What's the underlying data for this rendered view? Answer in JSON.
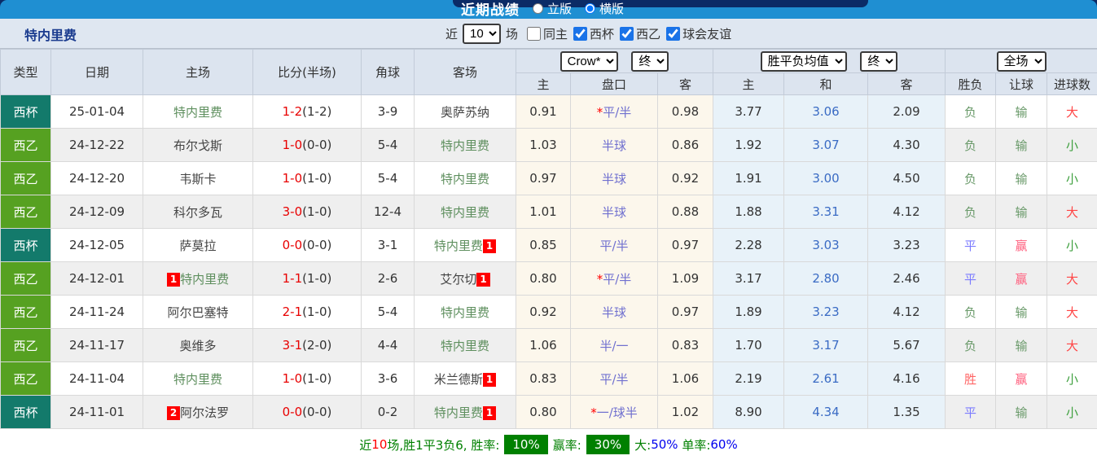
{
  "topbar": {
    "title": "近期战绩",
    "layout_options": [
      {
        "label": "立版",
        "selected": false
      },
      {
        "label": "横版",
        "selected": true
      }
    ]
  },
  "controls": {
    "team_name": "特内里费",
    "recent_label": "近",
    "recent_value": "10",
    "matches_label": "场",
    "checkboxes": [
      {
        "label": "同主",
        "checked": false
      },
      {
        "label": "西杯",
        "checked": true
      },
      {
        "label": "西乙",
        "checked": true
      },
      {
        "label": "球会友谊",
        "checked": true
      }
    ]
  },
  "table": {
    "headers": [
      "类型",
      "日期",
      "主场",
      "比分(半场)",
      "角球",
      "客场"
    ],
    "sub_headers": [
      "主",
      "盘口",
      "客",
      "主",
      "和",
      "客",
      "胜负",
      "让球",
      "进球数"
    ],
    "dropdowns": {
      "odds_company": "Crow*",
      "odds_time": "终",
      "avg_label": "胜平负均值",
      "avg_time": "终",
      "scope": "全场"
    },
    "rows": [
      {
        "type": "西杯",
        "date": "25-01-04",
        "home": {
          "name": "特内里费",
          "focus": true,
          "badge": ""
        },
        "score_ft": "1-2",
        "score_ht": "(1-2)",
        "corners": "3-9",
        "away": {
          "name": "奥萨苏纳",
          "focus": false,
          "badge": ""
        },
        "odds": [
          "0.91",
          "*平/半",
          "0.98"
        ],
        "avg": [
          "3.77",
          "3.06",
          "2.09"
        ],
        "results": [
          "负",
          "输",
          "大"
        ]
      },
      {
        "type": "西乙",
        "date": "24-12-22",
        "home": {
          "name": "布尔戈斯",
          "focus": false,
          "badge": ""
        },
        "score_ft": "1-0",
        "score_ht": "(0-0)",
        "corners": "5-4",
        "away": {
          "name": "特内里费",
          "focus": true,
          "badge": ""
        },
        "odds": [
          "1.03",
          "半球",
          "0.86"
        ],
        "avg": [
          "1.92",
          "3.07",
          "4.30"
        ],
        "results": [
          "负",
          "输",
          "小"
        ]
      },
      {
        "type": "西乙",
        "date": "24-12-20",
        "home": {
          "name": "韦斯卡",
          "focus": false,
          "badge": ""
        },
        "score_ft": "1-0",
        "score_ht": "(1-0)",
        "corners": "5-4",
        "away": {
          "name": "特内里费",
          "focus": true,
          "badge": ""
        },
        "odds": [
          "0.97",
          "半球",
          "0.92"
        ],
        "avg": [
          "1.91",
          "3.00",
          "4.50"
        ],
        "results": [
          "负",
          "输",
          "小"
        ]
      },
      {
        "type": "西乙",
        "date": "24-12-09",
        "home": {
          "name": "科尔多瓦",
          "focus": false,
          "badge": ""
        },
        "score_ft": "3-0",
        "score_ht": "(1-0)",
        "corners": "12-4",
        "away": {
          "name": "特内里费",
          "focus": true,
          "badge": ""
        },
        "odds": [
          "1.01",
          "半球",
          "0.88"
        ],
        "avg": [
          "1.88",
          "3.31",
          "4.12"
        ],
        "results": [
          "负",
          "输",
          "大"
        ]
      },
      {
        "type": "西杯",
        "date": "24-12-05",
        "home": {
          "name": "萨莫拉",
          "focus": false,
          "badge": ""
        },
        "score_ft": "0-0",
        "score_ht": "(0-0)",
        "corners": "3-1",
        "away": {
          "name": "特内里费",
          "focus": true,
          "badge": "1"
        },
        "odds": [
          "0.85",
          "平/半",
          "0.97"
        ],
        "avg": [
          "2.28",
          "3.03",
          "3.23"
        ],
        "results": [
          "平",
          "赢",
          "小"
        ]
      },
      {
        "type": "西乙",
        "date": "24-12-01",
        "home": {
          "name": "特内里费",
          "focus": true,
          "badge": "1"
        },
        "score_ft": "1-1",
        "score_ht": "(1-0)",
        "corners": "2-6",
        "away": {
          "name": "艾尔切",
          "focus": false,
          "badge": "1"
        },
        "odds": [
          "0.80",
          "*平/半",
          "1.09"
        ],
        "avg": [
          "3.17",
          "2.80",
          "2.46"
        ],
        "results": [
          "平",
          "赢",
          "大"
        ]
      },
      {
        "type": "西乙",
        "date": "24-11-24",
        "home": {
          "name": "阿尔巴塞特",
          "focus": false,
          "badge": ""
        },
        "score_ft": "2-1",
        "score_ht": "(1-0)",
        "corners": "5-4",
        "away": {
          "name": "特内里费",
          "focus": true,
          "badge": ""
        },
        "odds": [
          "0.92",
          "半球",
          "0.97"
        ],
        "avg": [
          "1.89",
          "3.23",
          "4.12"
        ],
        "results": [
          "负",
          "输",
          "大"
        ]
      },
      {
        "type": "西乙",
        "date": "24-11-17",
        "home": {
          "name": "奥维多",
          "focus": false,
          "badge": ""
        },
        "score_ft": "3-1",
        "score_ht": "(2-0)",
        "corners": "4-4",
        "away": {
          "name": "特内里费",
          "focus": true,
          "badge": ""
        },
        "odds": [
          "1.06",
          "半/一",
          "0.83"
        ],
        "avg": [
          "1.70",
          "3.17",
          "5.67"
        ],
        "results": [
          "负",
          "输",
          "大"
        ]
      },
      {
        "type": "西乙",
        "date": "24-11-04",
        "home": {
          "name": "特内里费",
          "focus": true,
          "badge": ""
        },
        "score_ft": "1-0",
        "score_ht": "(1-0)",
        "corners": "3-6",
        "away": {
          "name": "米兰德斯",
          "focus": false,
          "badge": "1"
        },
        "odds": [
          "0.83",
          "平/半",
          "1.06"
        ],
        "avg": [
          "2.19",
          "2.61",
          "4.16"
        ],
        "results": [
          "胜",
          "赢",
          "小"
        ]
      },
      {
        "type": "西杯",
        "date": "24-11-01",
        "home": {
          "name": "阿尔法罗",
          "focus": false,
          "badge": "2"
        },
        "score_ft": "0-0",
        "score_ht": "(0-0)",
        "corners": "0-2",
        "away": {
          "name": "特内里费",
          "focus": true,
          "badge": "1"
        },
        "odds": [
          "0.80",
          "*一/球半",
          "1.02"
        ],
        "avg": [
          "8.90",
          "4.34",
          "1.35"
        ],
        "results": [
          "平",
          "输",
          "小"
        ]
      }
    ]
  },
  "summary": {
    "badge_bg": "#008000",
    "segments": [
      {
        "text": "近",
        "color": "#008000"
      },
      {
        "text": "10",
        "color": "#ff0000"
      },
      {
        "text": "场,胜1平3负6, 胜率:",
        "color": "#008000"
      },
      {
        "text": "10%",
        "badge": true
      },
      {
        "text": "赢率:",
        "color": "#008000"
      },
      {
        "text": "30%",
        "badge": true
      },
      {
        "text": "大:",
        "color": "#008000"
      },
      {
        "text": "50%",
        "color": "#0000ee"
      },
      {
        "text": " 单率:",
        "color": "#008000"
      },
      {
        "text": "60%",
        "color": "#0000ee"
      }
    ]
  },
  "colors": {
    "type_badges": {
      "西杯": "#137a6b",
      "西乙": "#56a121"
    },
    "focus_team": "#5e8f5e",
    "other_team": "#444444",
    "result_map": {
      "胜": "#ff6666",
      "平": "#7b7bff",
      "负": "#6a9a6a",
      "赢": "#ff5f7e",
      "输": "#6a9a6a",
      "大": "#ff4444",
      "小": "#3fa03f"
    }
  }
}
